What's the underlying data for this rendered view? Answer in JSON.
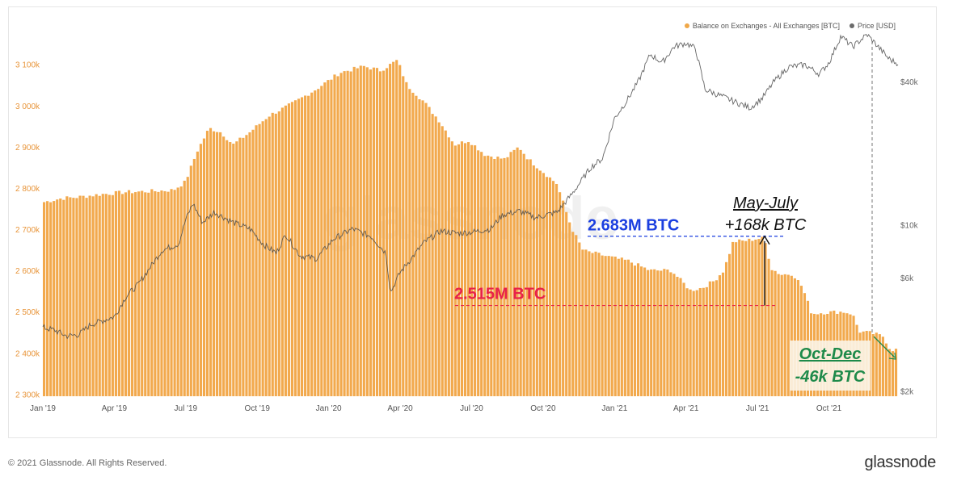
{
  "legend": [
    {
      "label": "Balance on Exchanges - All Exchanges [BTC]",
      "color": "#f0a849"
    },
    {
      "label": "Price [USD]",
      "color": "#6b6b6b"
    }
  ],
  "watermark": "glassnode",
  "footer": {
    "copyright": "© 2021 Glassnode. All Rights Reserved.",
    "brand": "glassnode"
  },
  "colors": {
    "bar": "#f2a94d",
    "price": "#4a4a4a",
    "axis_left": "#e8953a",
    "axis_right": "#666",
    "red": "#e8224a",
    "blue": "#1b3fe0",
    "green": "#1e8a4a"
  },
  "chart_data": {
    "type": "bar",
    "title": "",
    "left_axis": {
      "ticks": [
        2300,
        2400,
        2500,
        2600,
        2700,
        2800,
        2900,
        3000,
        3100
      ],
      "labels": [
        "2 300k",
        "2 400k",
        "2 500k",
        "2 600k",
        "2 700k",
        "2 800k",
        "2 900k",
        "3 000k",
        "3 100k"
      ],
      "range": [
        2295,
        3160
      ]
    },
    "right_axis": {
      "scale": "log",
      "ticks": [
        2000,
        6000,
        10000,
        40000
      ],
      "labels": [
        "$2k",
        "$6k",
        "$10k",
        "$40k"
      ],
      "range": [
        1900,
        60000
      ]
    },
    "x_axis": {
      "labels": [
        "Jan '19",
        "Apr '19",
        "Jul '19",
        "Oct '19",
        "Jan '20",
        "Apr '20",
        "Jul '20",
        "Oct '20",
        "Jan '21",
        "Apr '21",
        "Jul '21",
        "Oct '21"
      ],
      "label_months": [
        0,
        3,
        6,
        9,
        12,
        15,
        18,
        21,
        24,
        27,
        30,
        33
      ],
      "month_range": [
        0,
        35.9
      ]
    },
    "series": [
      {
        "name": "Balance on Exchanges - All Exchanges [BTC]",
        "unit": "k BTC",
        "points": [
          [
            0,
            2765
          ],
          [
            0.8,
            2775
          ],
          [
            1.5,
            2778
          ],
          [
            2.5,
            2785
          ],
          [
            3.5,
            2790
          ],
          [
            4.5,
            2792
          ],
          [
            5.5,
            2795
          ],
          [
            6,
            2815
          ],
          [
            6.5,
            2890
          ],
          [
            7,
            2945
          ],
          [
            7.5,
            2935
          ],
          [
            8,
            2905
          ],
          [
            8.7,
            2935
          ],
          [
            9.5,
            2975
          ],
          [
            10.5,
            3005
          ],
          [
            11.5,
            3040
          ],
          [
            12.5,
            3080
          ],
          [
            13.5,
            3095
          ],
          [
            14.2,
            3085
          ],
          [
            14.9,
            3110
          ],
          [
            15.3,
            3050
          ],
          [
            16,
            3010
          ],
          [
            16.7,
            2960
          ],
          [
            17.3,
            2905
          ],
          [
            17.9,
            2915
          ],
          [
            18.6,
            2880
          ],
          [
            19.4,
            2870
          ],
          [
            20,
            2900
          ],
          [
            20.4,
            2870
          ],
          [
            21,
            2840
          ],
          [
            21.6,
            2810
          ],
          [
            22.2,
            2705
          ],
          [
            22.7,
            2648
          ],
          [
            23.3,
            2640
          ],
          [
            24,
            2630
          ],
          [
            24.6,
            2623
          ],
          [
            25.5,
            2600
          ],
          [
            26.4,
            2600
          ],
          [
            26.9,
            2570
          ],
          [
            27.2,
            2552
          ],
          [
            27.7,
            2558
          ],
          [
            28.2,
            2575
          ],
          [
            28.6,
            2600
          ],
          [
            29,
            2670
          ],
          [
            29.5,
            2672
          ],
          [
            30,
            2677
          ],
          [
            30.3,
            2678
          ],
          [
            30.6,
            2605
          ],
          [
            31,
            2590
          ],
          [
            31.5,
            2592
          ],
          [
            31.9,
            2560
          ],
          [
            32.3,
            2495
          ],
          [
            32.8,
            2498
          ],
          [
            33.6,
            2500
          ],
          [
            34,
            2495
          ],
          [
            34.3,
            2452
          ],
          [
            34.8,
            2448
          ],
          [
            35.3,
            2440
          ],
          [
            35.6,
            2408
          ]
        ]
      },
      {
        "name": "Price [USD]",
        "unit": "USD",
        "scale": "log",
        "points": [
          [
            0,
            3700
          ],
          [
            0.5,
            3600
          ],
          [
            1,
            3400
          ],
          [
            1.5,
            3450
          ],
          [
            2,
            3800
          ],
          [
            3,
            4100
          ],
          [
            3.5,
            5000
          ],
          [
            4,
            5600
          ],
          [
            5,
            7800
          ],
          [
            5.7,
            8300
          ],
          [
            6,
            10500
          ],
          [
            6.3,
            12300
          ],
          [
            6.7,
            10200
          ],
          [
            7.2,
            11300
          ],
          [
            8,
            10200
          ],
          [
            8.7,
            9600
          ],
          [
            9.3,
            8200
          ],
          [
            9.8,
            7600
          ],
          [
            10.2,
            9100
          ],
          [
            10.8,
            7400
          ],
          [
            11.5,
            7200
          ],
          [
            12.2,
            8700
          ],
          [
            13,
            9600
          ],
          [
            13.8,
            8900
          ],
          [
            14.4,
            7600
          ],
          [
            14.6,
            5200
          ],
          [
            15,
            6300
          ],
          [
            16,
            8400
          ],
          [
            16.7,
            9400
          ],
          [
            17.4,
            9200
          ],
          [
            18,
            9300
          ],
          [
            18.8,
            9600
          ],
          [
            19.3,
            11000
          ],
          [
            20,
            11400
          ],
          [
            20.7,
            10700
          ],
          [
            21.6,
            11300
          ],
          [
            22.2,
            13400
          ],
          [
            23,
            17400
          ],
          [
            23.5,
            19000
          ],
          [
            24,
            28000
          ],
          [
            24.5,
            33000
          ],
          [
            25,
            40000
          ],
          [
            25.5,
            52000
          ],
          [
            26,
            48000
          ],
          [
            26.5,
            56000
          ],
          [
            27,
            58000
          ],
          [
            27.4,
            55000
          ],
          [
            27.8,
            37000
          ],
          [
            28.4,
            35000
          ],
          [
            29,
            33000
          ],
          [
            29.7,
            31000
          ],
          [
            30.2,
            34000
          ],
          [
            30.7,
            40000
          ],
          [
            31.3,
            46000
          ],
          [
            32,
            47000
          ],
          [
            32.6,
            43000
          ],
          [
            33,
            48000
          ],
          [
            33.5,
            62000
          ],
          [
            34,
            56000
          ],
          [
            34.6,
            63000
          ],
          [
            35,
            57000
          ],
          [
            35.5,
            50000
          ],
          [
            35.8,
            48000
          ]
        ]
      }
    ],
    "annotations": {
      "level_high": {
        "text": "2.683M BTC",
        "value": 2683
      },
      "level_low": {
        "text": "2.515M BTC",
        "value": 2515
      },
      "may_july": {
        "line1": "May-July",
        "line2": "+168k BTC"
      },
      "oct_dec": {
        "line1": "Oct-Dec",
        "line2": "-46k BTC"
      }
    },
    "grid": false
  }
}
